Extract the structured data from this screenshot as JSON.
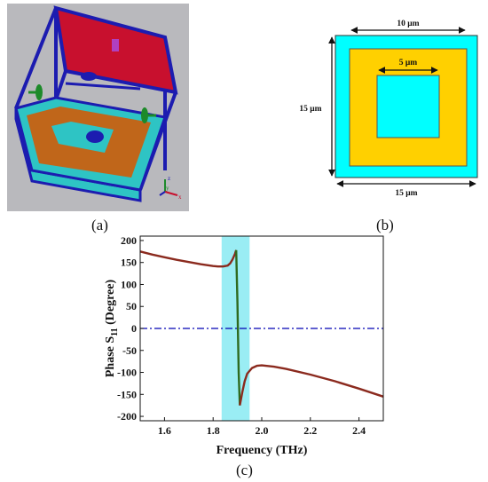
{
  "figure": {
    "panel_a_label": "(a)",
    "panel_b_label": "(b)",
    "panel_c_label": "(c)"
  },
  "model_3d": {
    "background": "#b9b9bd",
    "frame_color": "#1c1cb0",
    "top_plate_color": "#c8102e",
    "substrate_color": "#2ec4c4",
    "ring_color": "#c0661a",
    "port_color": "#1d8a2a",
    "axis_labels": {
      "x": "x",
      "y": "y",
      "z": "z"
    }
  },
  "unit_cell": {
    "outer_width_label": "10 μm",
    "inner_width_label": "5 μm",
    "height_label": "15 μm",
    "bottom_width_label": "15 μm",
    "cyan": "#00ffff",
    "yellow": "#ffd000"
  },
  "chart_data": {
    "type": "line",
    "xlabel": "Frequency (THz)",
    "ylabel_main": "Phase S",
    "ylabel_sub": "11",
    "ylabel_unit": " (Degree)",
    "xlim": [
      1.5,
      2.5
    ],
    "ylim": [
      -210,
      210
    ],
    "xticks": [
      1.6,
      1.8,
      2.0,
      2.2,
      2.4
    ],
    "yticks": [
      200,
      150,
      100,
      50,
      0,
      -50,
      -100,
      -150,
      -200
    ],
    "highlight_band": [
      1.835,
      1.95
    ],
    "reference_line": 0,
    "grid": false,
    "colors": {
      "line": "#8b2a1e",
      "resonance": "#2f6a1f",
      "band": "#6fe6ef",
      "ref": "#0000b4"
    },
    "series": [
      {
        "x": [
          1.5,
          1.55,
          1.6,
          1.65,
          1.7,
          1.75,
          1.8,
          1.82,
          1.84,
          1.86,
          1.87,
          1.88,
          1.89,
          1.895
        ],
        "values": [
          175,
          168,
          162,
          156,
          151,
          146,
          142,
          141,
          141,
          143,
          148,
          157,
          170,
          178
        ]
      },
      {
        "x": [
          1.895,
          1.9,
          1.905,
          1.91
        ],
        "values": [
          178,
          60,
          -100,
          -175
        ]
      },
      {
        "x": [
          1.91,
          1.92,
          1.93,
          1.94,
          1.96,
          1.98,
          2.0,
          2.05,
          2.1,
          2.2,
          2.3,
          2.4,
          2.5
        ],
        "values": [
          -175,
          -145,
          -120,
          -103,
          -90,
          -85,
          -84,
          -87,
          -92,
          -105,
          -120,
          -137,
          -155
        ]
      }
    ]
  }
}
